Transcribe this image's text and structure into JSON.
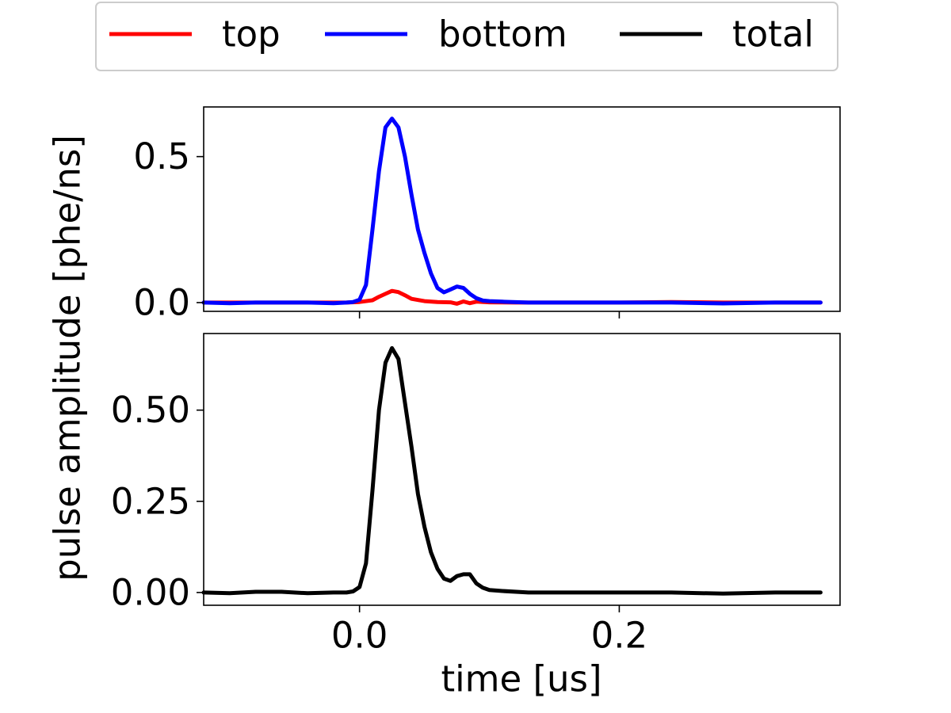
{
  "figure": {
    "ylabel": "pulse amplitude [phe/ns]",
    "xlabel": "time [us]"
  },
  "legend": {
    "placement": "top-center, outside axes",
    "entries": [
      {
        "label": "top",
        "color": "#ff0000"
      },
      {
        "label": "bottom",
        "color": "#0000ff"
      },
      {
        "label": "total",
        "color": "#000000"
      }
    ]
  },
  "chart_data": [
    {
      "type": "line",
      "panel": "top",
      "title": "",
      "xlim": [
        -0.12,
        0.37
      ],
      "ylim": [
        -0.03,
        0.67
      ],
      "shared_x": true,
      "grid": false,
      "yticks": [
        0.0,
        0.5
      ],
      "ytick_labels": [
        "0.0",
        "0.5"
      ],
      "xticks": [
        0.0,
        0.2
      ],
      "xtick_labels": [
        "",
        ""
      ],
      "series": [
        {
          "name": "top",
          "color": "#ff0000",
          "x": [
            -0.12,
            -0.1,
            -0.08,
            -0.06,
            -0.04,
            -0.02,
            -0.01,
            0.0,
            0.01,
            0.015,
            0.02,
            0.025,
            0.03,
            0.035,
            0.04,
            0.05,
            0.06,
            0.07,
            0.075,
            0.08,
            0.085,
            0.09,
            0.1,
            0.12,
            0.15,
            0.2,
            0.24,
            0.28,
            0.32,
            0.355
          ],
          "y": [
            0.0,
            0.0,
            0.0,
            0.0,
            0.0,
            0.0,
            0.0,
            0.002,
            0.008,
            0.02,
            0.03,
            0.04,
            0.036,
            0.025,
            0.013,
            0.005,
            0.002,
            0.001,
            -0.004,
            0.004,
            -0.002,
            0.003,
            0.001,
            0.0,
            0.0,
            0.0,
            0.002,
            0.0,
            0.0,
            0.0
          ]
        },
        {
          "name": "bottom",
          "color": "#0000ff",
          "x": [
            -0.12,
            -0.1,
            -0.08,
            -0.06,
            -0.04,
            -0.02,
            -0.01,
            -0.005,
            0.0,
            0.005,
            0.01,
            0.015,
            0.02,
            0.025,
            0.03,
            0.035,
            0.04,
            0.045,
            0.05,
            0.055,
            0.06,
            0.065,
            0.07,
            0.075,
            0.08,
            0.085,
            0.09,
            0.095,
            0.1,
            0.11,
            0.13,
            0.16,
            0.2,
            0.24,
            0.28,
            0.32,
            0.355
          ],
          "y": [
            0.0,
            -0.002,
            0.0,
            0.0,
            0.0,
            -0.002,
            0.0,
            0.002,
            0.01,
            0.06,
            0.25,
            0.45,
            0.6,
            0.63,
            0.6,
            0.5,
            0.37,
            0.25,
            0.17,
            0.1,
            0.05,
            0.035,
            0.045,
            0.055,
            0.05,
            0.03,
            0.015,
            0.007,
            0.005,
            0.003,
            0.0,
            0.0,
            0.0,
            0.0,
            -0.003,
            0.0,
            0.0
          ]
        }
      ]
    },
    {
      "type": "line",
      "panel": "bottom",
      "title": "",
      "xlim": [
        -0.12,
        0.37
      ],
      "ylim": [
        -0.035,
        0.71
      ],
      "grid": false,
      "yticks": [
        0.0,
        0.25,
        0.5
      ],
      "ytick_labels": [
        "0.00",
        "0.25",
        "0.50"
      ],
      "xticks": [
        0.0,
        0.2
      ],
      "xtick_labels": [
        "0.0",
        "0.2"
      ],
      "series": [
        {
          "name": "total",
          "color": "#000000",
          "x": [
            -0.12,
            -0.1,
            -0.08,
            -0.06,
            -0.04,
            -0.02,
            -0.01,
            -0.005,
            0.0,
            0.005,
            0.01,
            0.015,
            0.02,
            0.025,
            0.03,
            0.035,
            0.04,
            0.045,
            0.05,
            0.055,
            0.06,
            0.065,
            0.07,
            0.075,
            0.08,
            0.085,
            0.09,
            0.095,
            0.1,
            0.11,
            0.13,
            0.16,
            0.2,
            0.24,
            0.28,
            0.32,
            0.355
          ],
          "y": [
            0.0,
            -0.002,
            0.002,
            0.002,
            -0.002,
            0.0,
            0.0,
            0.003,
            0.015,
            0.08,
            0.28,
            0.5,
            0.63,
            0.67,
            0.64,
            0.52,
            0.4,
            0.27,
            0.18,
            0.11,
            0.065,
            0.038,
            0.032,
            0.045,
            0.05,
            0.05,
            0.025,
            0.013,
            0.007,
            0.004,
            0.0,
            0.0,
            0.0,
            0.0,
            -0.003,
            0.0,
            0.0
          ]
        }
      ]
    }
  ]
}
